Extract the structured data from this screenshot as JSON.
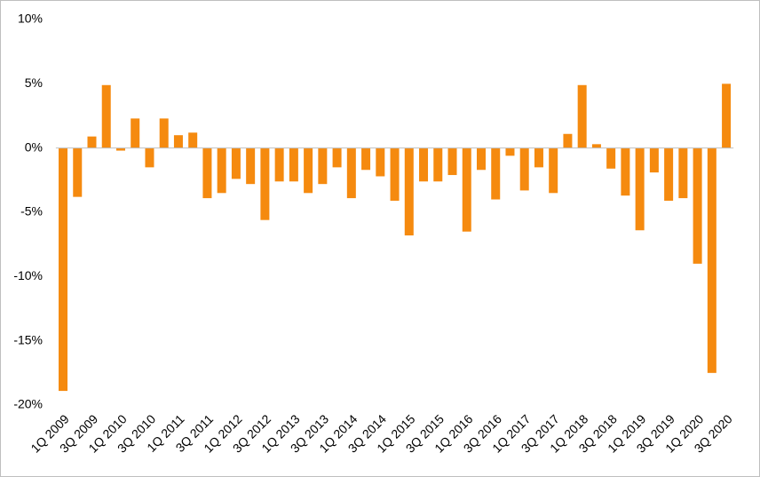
{
  "chart_data": {
    "type": "bar",
    "categories": [
      "1Q 2009",
      null,
      "3Q 2009",
      null,
      "1Q 2010",
      null,
      "3Q 2010",
      null,
      "1Q 2011",
      null,
      "3Q 2011",
      null,
      "1Q 2012",
      null,
      "3Q 2012",
      null,
      "1Q 2013",
      null,
      "3Q 2013",
      null,
      "1Q 2014",
      null,
      "3Q 2014",
      null,
      "1Q 2015",
      null,
      "3Q 2015",
      null,
      "1Q 2016",
      null,
      "3Q 2016",
      null,
      "1Q 2017",
      null,
      "3Q 2017",
      null,
      "1Q 2018",
      null,
      "3Q 2018",
      null,
      "1Q 2019",
      null,
      "3Q 2019",
      null,
      "1Q 2020",
      null,
      "3Q 2020"
    ],
    "values": [
      -18.9,
      -3.8,
      0.9,
      4.9,
      -0.2,
      2.3,
      -1.5,
      2.3,
      1.0,
      1.2,
      -3.9,
      -3.5,
      -2.4,
      -2.8,
      -5.6,
      -2.6,
      -2.6,
      -3.5,
      -2.8,
      -1.5,
      -3.9,
      -1.7,
      -2.2,
      -4.1,
      -6.8,
      -2.6,
      -2.6,
      -2.1,
      -6.5,
      -1.7,
      -4.0,
      -0.6,
      -3.3,
      -1.5,
      -3.5,
      1.1,
      4.9,
      0.3,
      -1.6,
      -3.7,
      -6.4,
      -1.9,
      -4.1,
      -3.9,
      -9.0,
      -17.5,
      5.0
    ],
    "color": "#f58a0f",
    "ylim": [
      -20,
      10
    ],
    "yticks": [
      {
        "value": -20,
        "label": "-20%"
      },
      {
        "value": -15,
        "label": "-15%"
      },
      {
        "value": -10,
        "label": "-10%"
      },
      {
        "value": -5,
        "label": "-5%"
      },
      {
        "value": 0,
        "label": "0%"
      },
      {
        "value": 5,
        "label": "5%"
      },
      {
        "value": 10,
        "label": "10%"
      }
    ],
    "grid": false
  }
}
